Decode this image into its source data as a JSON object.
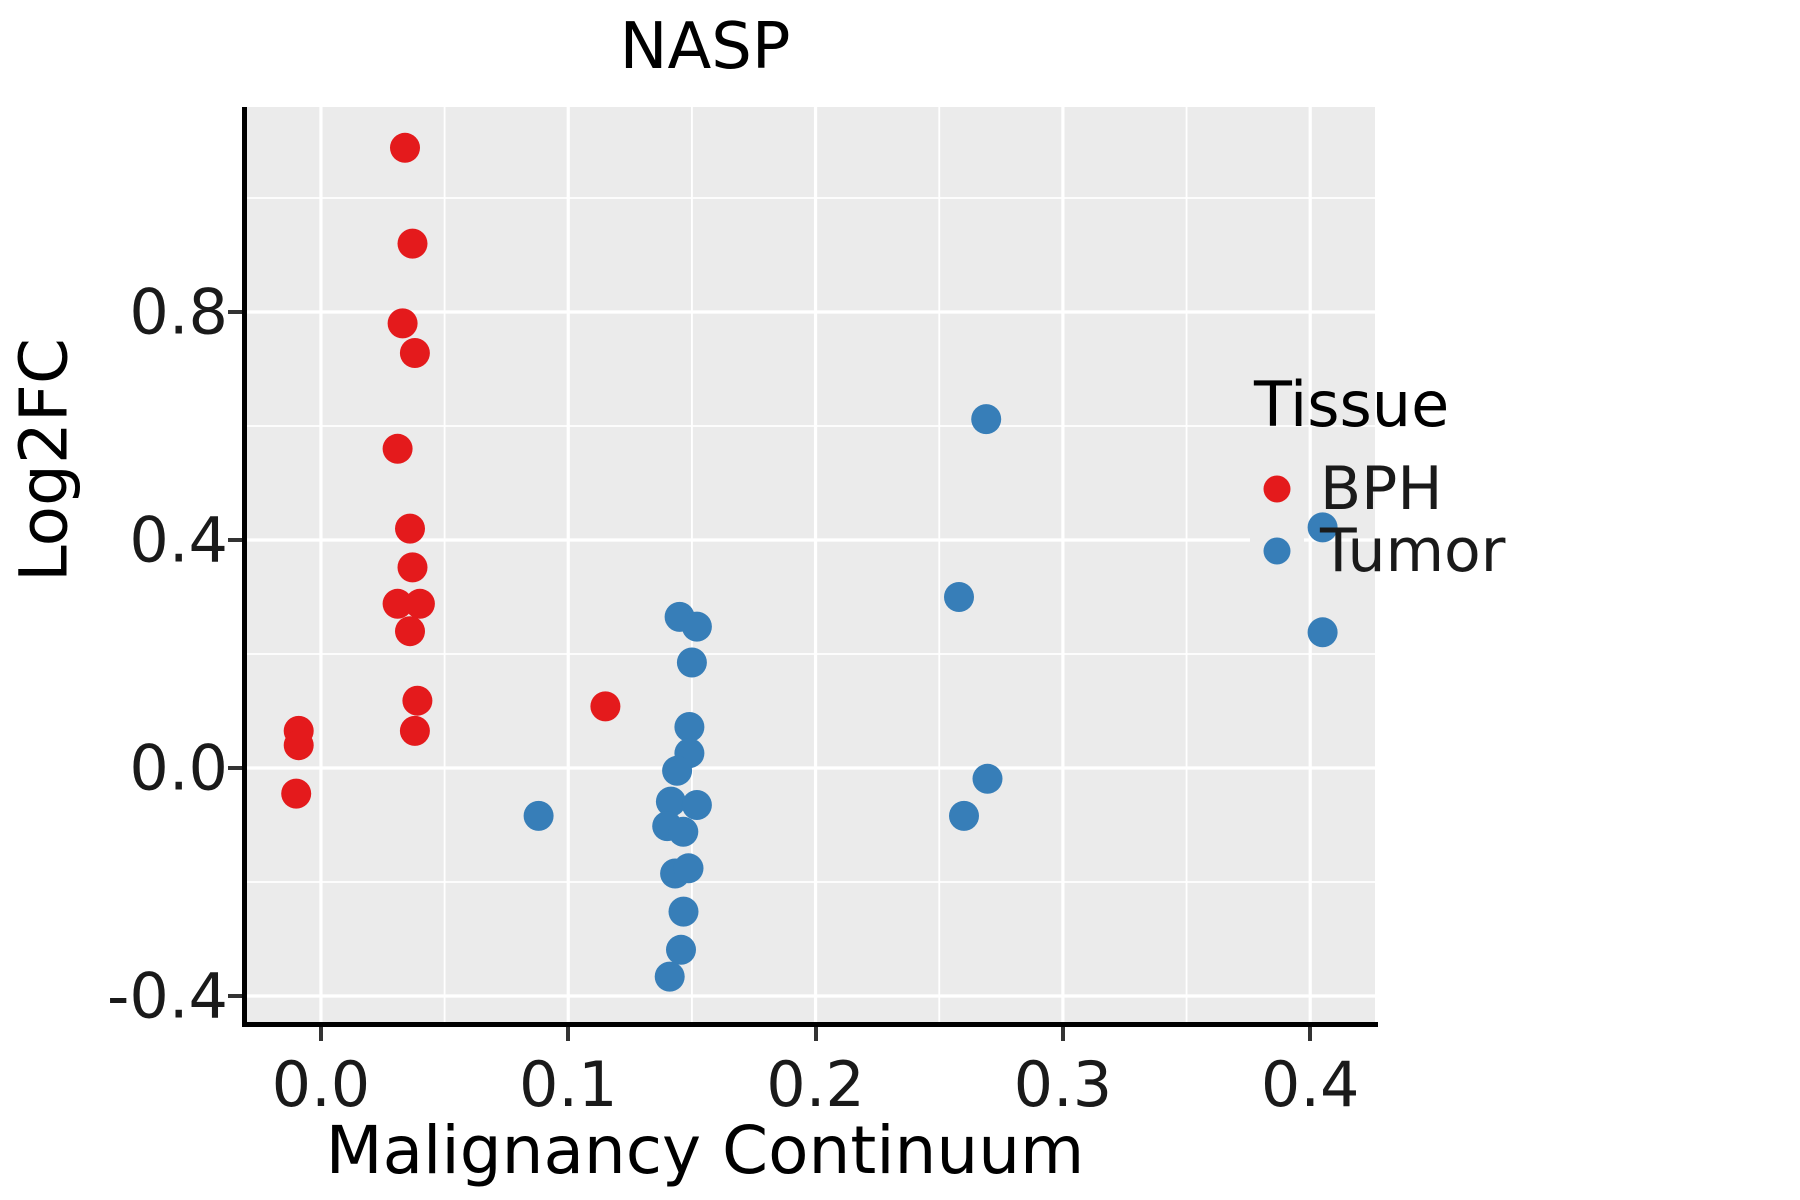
{
  "chart_data": {
    "type": "scatter",
    "title": "NASP",
    "xlabel": "Malignancy Continuum",
    "ylabel": "Log2FC",
    "xlim": [
      -0.0299,
      0.4262
    ],
    "ylim": [
      -0.4456,
      1.1596
    ],
    "x_ticks": [
      0.0,
      0.1,
      0.2,
      0.3,
      0.4
    ],
    "x_tick_labels": [
      "0.0",
      "0.1",
      "0.2",
      "0.3",
      "0.4"
    ],
    "x_minor_ticks": [
      0.05,
      0.15,
      0.25,
      0.35
    ],
    "y_ticks": [
      -0.4,
      0.0,
      0.4,
      0.8
    ],
    "y_tick_labels": [
      "-0.4",
      "0.0",
      "0.4",
      "0.8"
    ],
    "y_minor_ticks": [
      -0.2,
      0.2,
      0.6,
      1.0
    ],
    "grid": true,
    "panel_background": "#EBEBEB",
    "gridline_color": "#FFFFFF",
    "point_radius_px": 15,
    "legend": {
      "title": "Tissue",
      "position": "right",
      "entries": [
        {
          "label": "BPH",
          "color": "#E41A1C"
        },
        {
          "label": "Tumor",
          "color": "#377EB8"
        }
      ]
    },
    "series": [
      {
        "name": "BPH",
        "color": "#E41A1C",
        "points": [
          [
            -0.009,
            0.065
          ],
          [
            -0.009,
            0.04
          ],
          [
            -0.01,
            -0.045
          ],
          [
            0.034,
            1.088
          ],
          [
            0.037,
            0.92
          ],
          [
            0.033,
            0.78
          ],
          [
            0.038,
            0.728
          ],
          [
            0.031,
            0.56
          ],
          [
            0.036,
            0.42
          ],
          [
            0.037,
            0.352
          ],
          [
            0.031,
            0.288
          ],
          [
            0.04,
            0.288
          ],
          [
            0.036,
            0.24
          ],
          [
            0.039,
            0.118
          ],
          [
            0.038,
            0.065
          ],
          [
            0.115,
            0.108
          ]
        ]
      },
      {
        "name": "Tumor",
        "color": "#377EB8",
        "points": [
          [
            0.088,
            -0.084
          ],
          [
            0.145,
            0.265
          ],
          [
            0.152,
            0.248
          ],
          [
            0.15,
            0.185
          ],
          [
            0.149,
            0.072
          ],
          [
            0.149,
            0.026
          ],
          [
            0.144,
            -0.005
          ],
          [
            0.1415,
            -0.059
          ],
          [
            0.152,
            -0.065
          ],
          [
            0.14,
            -0.102
          ],
          [
            0.1465,
            -0.112
          ],
          [
            0.1432,
            -0.185
          ],
          [
            0.1486,
            -0.176
          ],
          [
            0.1466,
            -0.252
          ],
          [
            0.1456,
            -0.319
          ],
          [
            0.141,
            -0.366
          ],
          [
            0.258,
            0.3
          ],
          [
            0.269,
            0.612
          ],
          [
            0.2695,
            -0.019
          ],
          [
            0.26,
            -0.084
          ],
          [
            0.405,
            0.422
          ],
          [
            0.405,
            0.238
          ]
        ]
      }
    ]
  }
}
